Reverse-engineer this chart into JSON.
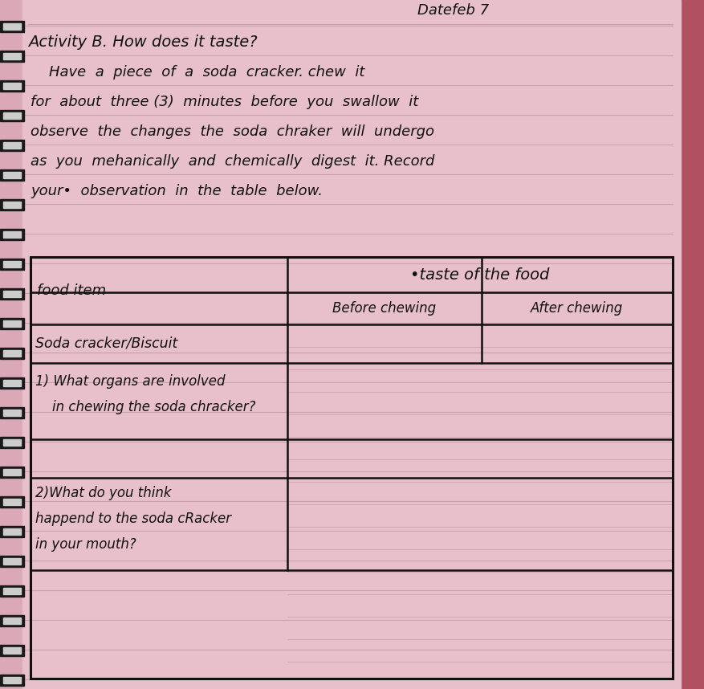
{
  "bg_color": "#dba8b8",
  "page_color": "#e8c0cc",
  "line_color": "#c8a0b0",
  "text_color": "#111111",
  "date_text": "Datefeb 7",
  "title_text": "Activity B. How does it taste?",
  "body_lines": [
    "    Have  a  piece  of  a  soda  cracker. chew  it",
    "for  about  three (3)  minutes  before  you  swallow  it",
    "observe  the  changes  the  soda  chraker  will  undergo",
    "as  you  mehanically  and  chemically  digest  it. Record",
    "your•  observation  in  the  table  below."
  ],
  "table_col1_header": "food item",
  "table_col2_header": "•taste of the food",
  "table_subcol1": "Before chewing",
  "table_subcol2": "After chewing",
  "table_row1": "Soda cracker/Biscuit",
  "table_row2a": "1) What organs are involved",
  "table_row2b": "    in chewing the soda chracker?",
  "table_row3a": "2)What do you think",
  "table_row3b": "happend to the soda cRacker",
  "table_row3c": "in your mouth?",
  "notebook_line_color": "#c8a0b0",
  "spiral_color": "#222222",
  "right_edge_color": "#b05060"
}
